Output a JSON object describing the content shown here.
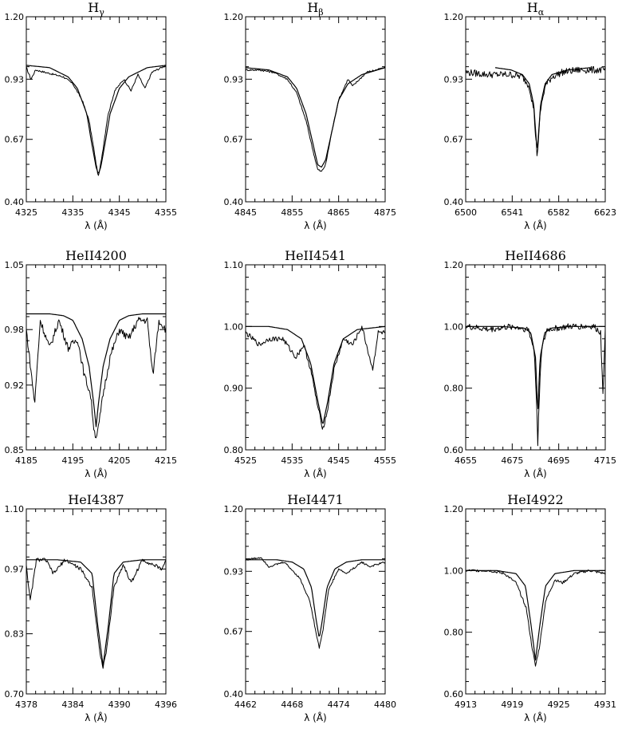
{
  "figure": {
    "grid": false,
    "line_color": "#000000",
    "background": "#ffffff"
  },
  "chart_data": [
    {
      "type": "line",
      "title": "Hγ",
      "title_main": "H",
      "title_sub": "γ",
      "xlabel": "λ (Å)",
      "ylabel": "",
      "xlim": [
        4325,
        4355
      ],
      "ylim": [
        0.4,
        1.2
      ],
      "xticks": [
        "4325",
        "4335",
        "4345",
        "4355"
      ],
      "yticks": [
        "0.40",
        "0.67",
        "0.93",
        "1.20"
      ],
      "line_center": 4340.5,
      "core_depth": 0.52,
      "wing_width": 1.8,
      "continuum": 0.99,
      "obs_dips": [
        [
          4326.3,
          0.05,
          0.2
        ],
        [
          4347.5,
          0.07,
          0.25
        ],
        [
          4350.5,
          0.06,
          0.2
        ],
        [
          4345.5,
          0.03,
          0.3
        ]
      ],
      "series": [
        {
          "kind": "observed",
          "x": [
            4325,
            4326,
            4327,
            4329,
            4331,
            4333,
            4335,
            4337,
            4338.5,
            4339.5,
            4340.2,
            4340.5,
            4340.8,
            4341.5,
            4342.5,
            4344,
            4346,
            4347.5,
            4349,
            4350.5,
            4352,
            4354,
            4355
          ],
          "y": [
            0.98,
            0.93,
            0.97,
            0.96,
            0.95,
            0.94,
            0.91,
            0.84,
            0.75,
            0.63,
            0.54,
            0.51,
            0.54,
            0.63,
            0.77,
            0.88,
            0.93,
            0.88,
            0.95,
            0.89,
            0.96,
            0.98,
            0.99
          ]
        },
        {
          "kind": "model",
          "x": [
            4325,
            4330,
            4334,
            4336,
            4338,
            4339,
            4340,
            4340.5,
            4341,
            4342,
            4343,
            4345,
            4347,
            4351,
            4355
          ],
          "y": [
            0.99,
            0.98,
            0.94,
            0.89,
            0.78,
            0.66,
            0.55,
            0.52,
            0.55,
            0.66,
            0.78,
            0.89,
            0.94,
            0.98,
            0.99
          ]
        }
      ]
    },
    {
      "type": "line",
      "title": "Hβ",
      "title_main": "H",
      "title_sub": "β",
      "xlabel": "λ (Å)",
      "ylabel": "",
      "xlim": [
        4845,
        4875
      ],
      "ylim": [
        0.4,
        1.2
      ],
      "xticks": [
        "4845",
        "4855",
        "4865",
        "4875"
      ],
      "yticks": [
        "0.40",
        "0.67",
        "0.93",
        "1.20"
      ],
      "line_center": 4861.3,
      "core_depth": 0.53,
      "wing_width": 1.9,
      "continuum": 0.98,
      "obs_dips": [
        [
          4867.5,
          0.03,
          0.3
        ]
      ],
      "series": [
        {
          "kind": "observed",
          "x": [
            4845,
            4848,
            4851,
            4854,
            4856,
            4858,
            4859.5,
            4860.5,
            4861.3,
            4862.2,
            4863.5,
            4865,
            4867,
            4868,
            4871,
            4875
          ],
          "y": [
            0.97,
            0.97,
            0.96,
            0.93,
            0.87,
            0.75,
            0.62,
            0.54,
            0.53,
            0.56,
            0.7,
            0.84,
            0.93,
            0.9,
            0.96,
            0.98
          ]
        },
        {
          "kind": "model",
          "x": [
            4845,
            4850,
            4854,
            4856,
            4858,
            4859.5,
            4860.5,
            4861.3,
            4862.2,
            4863.5,
            4865,
            4867,
            4870,
            4875
          ],
          "y": [
            0.98,
            0.97,
            0.94,
            0.89,
            0.78,
            0.65,
            0.56,
            0.55,
            0.58,
            0.7,
            0.84,
            0.91,
            0.95,
            0.98
          ]
        }
      ]
    },
    {
      "type": "line",
      "title": "Hα",
      "title_main": "H",
      "title_sub": "α",
      "xlabel": "λ (Å)",
      "ylabel": "",
      "xlim": [
        6500,
        6623
      ],
      "ylim": [
        0.4,
        1.2
      ],
      "xticks": [
        "6500",
        "6541",
        "6582",
        "6623"
      ],
      "yticks": [
        "0.40",
        "0.67",
        "0.93",
        "1.20"
      ],
      "line_center": 6563,
      "core_depth": 0.6,
      "wing_width": 2.5,
      "continuum": 0.97,
      "noise": 0.015,
      "series": [
        {
          "kind": "observed",
          "x": [
            6500,
            6520,
            6540,
            6550,
            6556,
            6560,
            6562,
            6563,
            6564,
            6566,
            6570,
            6576,
            6585,
            6600,
            6623
          ],
          "y": [
            0.96,
            0.95,
            0.95,
            0.94,
            0.9,
            0.8,
            0.66,
            0.6,
            0.66,
            0.8,
            0.9,
            0.94,
            0.96,
            0.97,
            0.97
          ]
        },
        {
          "kind": "model",
          "x": [
            6526,
            6540,
            6550,
            6556,
            6560,
            6562,
            6563,
            6564,
            6566,
            6570,
            6576,
            6590,
            6610
          ],
          "y": [
            0.98,
            0.97,
            0.95,
            0.91,
            0.82,
            0.68,
            0.62,
            0.68,
            0.82,
            0.91,
            0.95,
            0.97,
            0.98
          ]
        }
      ]
    },
    {
      "type": "line",
      "title": "HeII4200",
      "xlabel": "λ (Å)",
      "ylabel": "",
      "xlim": [
        4185,
        4215
      ],
      "ylim": [
        0.85,
        1.05
      ],
      "xticks": [
        "4185",
        "4195",
        "4205",
        "4215"
      ],
      "yticks": [
        "0.85",
        "0.92",
        "0.98",
        "1.05"
      ],
      "line_center": 4200,
      "core_depth": 0.865,
      "wing_width": 2.2,
      "continuum": 0.997,
      "obs_dips": [
        [
          4185.5,
          0.04,
          0.2
        ],
        [
          4186.8,
          0.09,
          0.2
        ],
        [
          4188.5,
          0.05,
          0.2
        ],
        [
          4190.5,
          0.03,
          0.2
        ],
        [
          4193.5,
          0.03,
          0.25
        ],
        [
          4197,
          0.02,
          0.3
        ],
        [
          4206.5,
          0.02,
          0.25
        ],
        [
          4212.2,
          0.07,
          0.2
        ],
        [
          4214,
          0.015,
          0.3
        ]
      ],
      "series": [
        {
          "kind": "observed",
          "x": [
            4185,
            4186.8,
            4188,
            4190,
            4192,
            4194,
            4196,
            4197.5,
            4198.8,
            4199.6,
            4200,
            4200.4,
            4201.5,
            4203,
            4205,
            4207,
            4209,
            4211,
            4212.2,
            4213.5,
            4215
          ],
          "y": [
            0.98,
            0.9,
            0.99,
            0.96,
            0.99,
            0.96,
            0.97,
            0.93,
            0.91,
            0.87,
            0.865,
            0.87,
            0.91,
            0.95,
            0.98,
            0.97,
            0.99,
            0.99,
            0.93,
            0.99,
            0.98
          ]
        },
        {
          "kind": "model",
          "x": [
            4185,
            4190,
            4193,
            4195,
            4197,
            4198.5,
            4199.5,
            4200,
            4200.5,
            4201.5,
            4203,
            4205,
            4207,
            4210,
            4215
          ],
          "y": [
            0.997,
            0.997,
            0.995,
            0.99,
            0.97,
            0.94,
            0.9,
            0.875,
            0.9,
            0.94,
            0.97,
            0.99,
            0.995,
            0.997,
            0.997
          ]
        }
      ]
    },
    {
      "type": "line",
      "title": "HeII4541",
      "xlabel": "λ (Å)",
      "ylabel": "",
      "xlim": [
        4525,
        4555
      ],
      "ylim": [
        0.8,
        1.1
      ],
      "xticks": [
        "4525",
        "4535",
        "4545",
        "4555"
      ],
      "yticks": [
        "0.80",
        "0.90",
        "1.00",
        "1.10"
      ],
      "line_center": 4541.6,
      "core_depth": 0.834,
      "wing_width": 1.8,
      "continuum": 1.0,
      "obs_dips": [
        [
          4528,
          0.02,
          0.3
        ],
        [
          4530,
          0.025,
          0.3
        ],
        [
          4535.8,
          0.05,
          0.3
        ],
        [
          4537.5,
          0.03,
          0.3
        ],
        [
          4548,
          0.03,
          0.3
        ],
        [
          4552.3,
          0.07,
          0.2
        ]
      ],
      "series": [
        {
          "kind": "observed",
          "x": [
            4525,
            4528,
            4530,
            4533,
            4535.8,
            4537.5,
            4539,
            4540.5,
            4541.6,
            4542.5,
            4544,
            4546,
            4548,
            4550,
            4552.3,
            4553.5,
            4555
          ],
          "y": [
            0.99,
            0.97,
            0.98,
            0.98,
            0.95,
            0.97,
            0.93,
            0.87,
            0.834,
            0.86,
            0.93,
            0.98,
            0.97,
            1.0,
            0.93,
            0.99,
            0.99
          ]
        },
        {
          "kind": "model",
          "x": [
            4525,
            4530,
            4534,
            4537,
            4539,
            4540.5,
            4541.6,
            4542.7,
            4544,
            4546,
            4549,
            4555
          ],
          "y": [
            1.0,
            1.0,
            0.995,
            0.98,
            0.94,
            0.88,
            0.84,
            0.88,
            0.94,
            0.98,
            0.995,
            1.0
          ]
        }
      ]
    },
    {
      "type": "line",
      "title": "HeII4686",
      "xlabel": "λ (Å)",
      "ylabel": "",
      "xlim": [
        4655,
        4715
      ],
      "ylim": [
        0.6,
        1.2
      ],
      "xticks": [
        "4655",
        "4675",
        "4695",
        "4715"
      ],
      "yticks": [
        "0.60",
        "0.80",
        "1.00",
        "1.20"
      ],
      "line_center": 4686,
      "core_depth": 0.62,
      "wing_width": 0.8,
      "continuum": 1.0,
      "noise": 0.01,
      "obs_dips": [
        [
          4714,
          0.21,
          0.25
        ],
        [
          4703,
          0.02,
          0.2
        ]
      ],
      "series": [
        {
          "kind": "observed",
          "x": [
            4655,
            4665,
            4675,
            4682,
            4684.5,
            4685.5,
            4686,
            4686.5,
            4687.5,
            4690,
            4700,
            4710,
            4713,
            4714,
            4715
          ],
          "y": [
            1.0,
            0.99,
            1.0,
            0.99,
            0.92,
            0.75,
            0.62,
            0.75,
            0.92,
            0.99,
            1.0,
            1.0,
            0.98,
            0.79,
            0.99
          ]
        },
        {
          "kind": "model",
          "x": [
            4655,
            4670,
            4680,
            4683,
            4685,
            4685.7,
            4686,
            4686.3,
            4687,
            4689,
            4692,
            4700,
            4715
          ],
          "y": [
            1.0,
            1.0,
            0.995,
            0.98,
            0.9,
            0.78,
            0.7,
            0.78,
            0.9,
            0.98,
            0.995,
            1.0,
            1.0
          ]
        }
      ]
    },
    {
      "type": "line",
      "title": "HeI4387",
      "xlabel": "λ (Å)",
      "ylabel": "",
      "xlim": [
        4378,
        4396
      ],
      "ylim": [
        0.7,
        1.1
      ],
      "xticks": [
        "4378",
        "4384",
        "4390",
        "4396"
      ],
      "yticks": [
        "0.70",
        "0.83",
        "0.97",
        "1.10"
      ],
      "line_center": 4387.9,
      "core_depth": 0.755,
      "wing_width": 0.55,
      "continuum": 0.99,
      "obs_dips": [
        [
          4378.5,
          0.1,
          0.15
        ],
        [
          4381.5,
          0.04,
          0.2
        ],
        [
          4391.5,
          0.05,
          0.15
        ],
        [
          4395.5,
          0.02,
          0.2
        ],
        [
          4385,
          0.02,
          0.2
        ]
      ],
      "series": [
        {
          "kind": "observed",
          "x": [
            4378,
            4378.5,
            4379.3,
            4380.5,
            4381.5,
            4383,
            4385,
            4386.5,
            4387.4,
            4387.9,
            4388.4,
            4389.3,
            4390.5,
            4391.5,
            4393,
            4395.5,
            4396
          ],
          "y": [
            0.98,
            0.9,
            0.99,
            0.99,
            0.96,
            0.99,
            0.97,
            0.93,
            0.8,
            0.755,
            0.8,
            0.93,
            0.98,
            0.94,
            0.99,
            0.97,
            0.99
          ]
        },
        {
          "kind": "model",
          "x": [
            4378,
            4382,
            4385,
            4386.5,
            4387.2,
            4387.9,
            4388.6,
            4389.3,
            4390.5,
            4393,
            4396
          ],
          "y": [
            0.99,
            0.99,
            0.985,
            0.96,
            0.85,
            0.76,
            0.85,
            0.96,
            0.985,
            0.99,
            0.99
          ]
        }
      ]
    },
    {
      "type": "line",
      "title": "HeI4471",
      "xlabel": "λ (Å)",
      "ylabel": "",
      "xlim": [
        4462,
        4480
      ],
      "ylim": [
        0.4,
        1.2
      ],
      "xticks": [
        "4462",
        "4468",
        "4474",
        "4480"
      ],
      "yticks": [
        "0.40",
        "0.67",
        "0.93",
        "1.20"
      ],
      "line_center": 4471.5,
      "core_depth": 0.6,
      "wing_width": 0.7,
      "continuum": 0.98,
      "obs_dips": [
        [
          4470.0,
          0.08,
          0.5
        ],
        [
          4465,
          0.03,
          0.3
        ],
        [
          4474.5,
          0.04,
          0.3
        ],
        [
          4478,
          0.03,
          0.3
        ]
      ],
      "series": [
        {
          "kind": "observed",
          "x": [
            4462,
            4464,
            4465,
            4467,
            4469,
            4470.3,
            4471,
            4471.5,
            4472,
            4472.7,
            4474,
            4475,
            4477,
            4478,
            4480
          ],
          "y": [
            0.98,
            0.99,
            0.95,
            0.97,
            0.9,
            0.8,
            0.68,
            0.6,
            0.68,
            0.85,
            0.94,
            0.92,
            0.97,
            0.95,
            0.97
          ]
        },
        {
          "kind": "model",
          "x": [
            4462,
            4466,
            4468,
            4469.5,
            4470.5,
            4471.1,
            4471.5,
            4471.9,
            4472.5,
            4473.5,
            4475,
            4477,
            4480
          ],
          "y": [
            0.98,
            0.98,
            0.97,
            0.94,
            0.86,
            0.72,
            0.64,
            0.72,
            0.86,
            0.94,
            0.97,
            0.98,
            0.98
          ]
        }
      ]
    },
    {
      "type": "line",
      "title": "HeI4922",
      "xlabel": "λ (Å)",
      "ylabel": "",
      "xlim": [
        4913,
        4931
      ],
      "ylim": [
        0.6,
        1.2
      ],
      "xticks": [
        "4913",
        "4919",
        "4925",
        "4931"
      ],
      "yticks": [
        "0.60",
        "0.80",
        "1.00",
        "1.20"
      ],
      "line_center": 4922.0,
      "core_depth": 0.69,
      "wing_width": 0.6,
      "continuum": 1.0,
      "obs_dips": [
        [
          4920.8,
          0.06,
          0.5
        ],
        [
          4925.5,
          0.03,
          0.3
        ],
        [
          4927.5,
          0.02,
          0.3
        ]
      ],
      "series": [
        {
          "kind": "observed",
          "x": [
            4913,
            4916,
            4918,
            4919.5,
            4920.8,
            4921.5,
            4922,
            4922.5,
            4923.3,
            4924.5,
            4925.5,
            4927,
            4929,
            4931
          ],
          "y": [
            1.0,
            1.0,
            0.99,
            0.96,
            0.88,
            0.76,
            0.69,
            0.75,
            0.9,
            0.97,
            0.96,
            0.99,
            1.0,
            0.99
          ]
        },
        {
          "kind": "model",
          "x": [
            4913,
            4917,
            4919.5,
            4920.7,
            4921.4,
            4922,
            4922.6,
            4923.3,
            4924.5,
            4927,
            4931
          ],
          "y": [
            1.0,
            1.0,
            0.99,
            0.95,
            0.83,
            0.71,
            0.83,
            0.95,
            0.99,
            1.0,
            1.0
          ]
        }
      ]
    }
  ]
}
